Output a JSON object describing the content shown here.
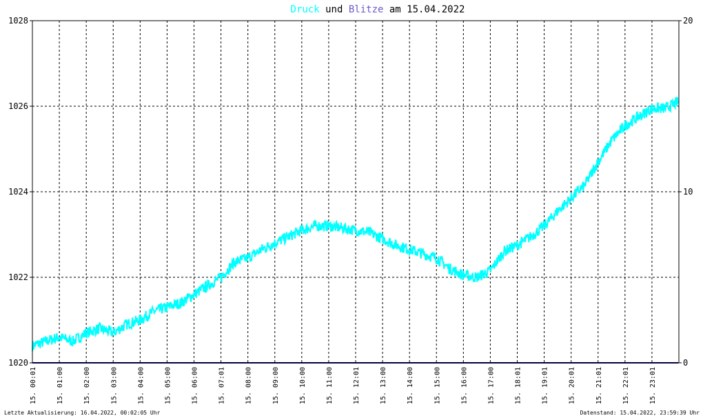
{
  "title": {
    "part_druck": "Druck",
    "part_und": " und ",
    "part_blitze": "Blitze",
    "part_date": " am 15.04.2022"
  },
  "footer": {
    "left": "Letzte Aktualisierung: 16.04.2022, 00:02:05 Uhr",
    "right": "Datenstand: 15.04.2022, 23:59:39 Uhr"
  },
  "colors": {
    "druck": "#00ffff",
    "blitze": "#6a5acd",
    "axis": "#000000",
    "baseline": "#000080"
  },
  "chart_data": {
    "type": "line",
    "title": "Druck und Blitze am 15.04.2022",
    "left_axis": {
      "ylim": [
        1020,
        1028
      ],
      "ticks": [
        1020,
        1022,
        1024,
        1026,
        1028
      ]
    },
    "right_axis": {
      "ylim": [
        0,
        20
      ],
      "ticks": [
        0,
        10,
        20
      ]
    },
    "x_ticks": [
      "15. 00:01",
      "15. 01:00",
      "15. 02:00",
      "15. 03:00",
      "15. 04:00",
      "15. 05:00",
      "15. 06:00",
      "15. 07:01",
      "15. 08:00",
      "15. 09:00",
      "15. 10:00",
      "15. 11:00",
      "15. 12:01",
      "15. 13:00",
      "15. 14:00",
      "15. 15:00",
      "15. 16:00",
      "15. 17:00",
      "15. 18:01",
      "15. 19:01",
      "15. 20:01",
      "15. 21:01",
      "15. 22:01",
      "15. 23:01"
    ],
    "grid": true,
    "series": [
      {
        "name": "Druck",
        "axis": "left",
        "x_hours": [
          0,
          0.5,
          1,
          1.5,
          2,
          2.5,
          3,
          3.5,
          4,
          4.5,
          5,
          5.5,
          6,
          6.5,
          7,
          7.5,
          8,
          8.5,
          9,
          9.5,
          10,
          10.5,
          11,
          11.5,
          12,
          12.5,
          13,
          13.5,
          14,
          14.5,
          15,
          15.5,
          16,
          16.5,
          17,
          17.5,
          18,
          18.5,
          19,
          19.5,
          20,
          20.5,
          21,
          21.5,
          22,
          22.5,
          23,
          23.5,
          23.98
        ],
        "values": [
          1020.4,
          1020.5,
          1020.6,
          1020.5,
          1020.7,
          1020.8,
          1020.7,
          1020.9,
          1021.0,
          1021.2,
          1021.3,
          1021.4,
          1021.6,
          1021.8,
          1022.0,
          1022.35,
          1022.45,
          1022.65,
          1022.8,
          1022.95,
          1023.1,
          1023.2,
          1023.2,
          1023.15,
          1023.1,
          1023.05,
          1022.9,
          1022.75,
          1022.65,
          1022.55,
          1022.45,
          1022.2,
          1022.05,
          1022.0,
          1022.15,
          1022.6,
          1022.75,
          1022.95,
          1023.2,
          1023.55,
          1023.85,
          1024.15,
          1024.7,
          1025.2,
          1025.55,
          1025.75,
          1025.95,
          1025.95,
          1026.1
        ]
      },
      {
        "name": "Blitze",
        "axis": "right",
        "x_hours": [
          0,
          23.98
        ],
        "values": [
          0,
          0
        ]
      }
    ]
  }
}
